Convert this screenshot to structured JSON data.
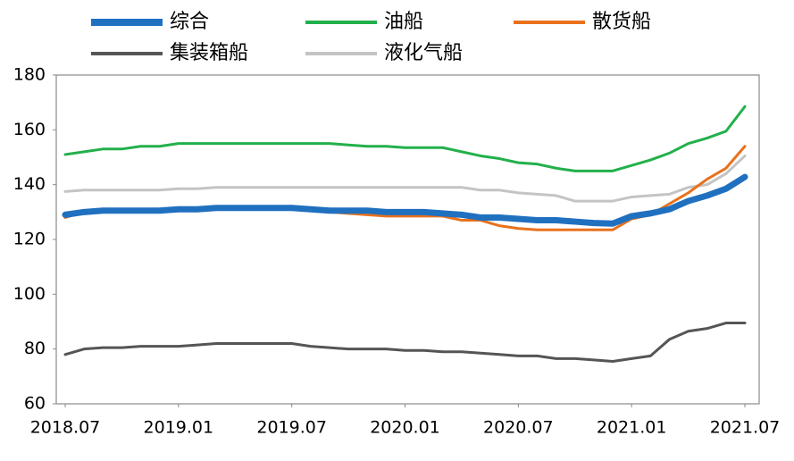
{
  "chart_data": {
    "type": "line",
    "categories": [
      "2018.07",
      null,
      null,
      null,
      null,
      null,
      "2019.01",
      null,
      null,
      null,
      null,
      null,
      "2019.07",
      null,
      null,
      null,
      null,
      null,
      "2020.01",
      null,
      null,
      null,
      null,
      null,
      "2020.07",
      null,
      null,
      null,
      null,
      null,
      "2021.01",
      null,
      null,
      null,
      null,
      null,
      "2021.07"
    ],
    "series": [
      {
        "name": "综合",
        "color": "#2070c0",
        "width": 7,
        "values": [
          129,
          130,
          130.5,
          130.5,
          130.5,
          130.5,
          131,
          131,
          131.5,
          131.5,
          131.5,
          131.5,
          131.5,
          131,
          130.5,
          130.5,
          130.5,
          130,
          130,
          130,
          129.5,
          129,
          128,
          128,
          127.5,
          127,
          127,
          126.5,
          126,
          125.8,
          128.5,
          129.5,
          131,
          134,
          136,
          138.5,
          142.8
        ]
      },
      {
        "name": "油船",
        "color": "#22b04b",
        "width": 3,
        "values": [
          151,
          152,
          153,
          153,
          154,
          154,
          155,
          155,
          155,
          155,
          155,
          155,
          155,
          155,
          155,
          154.5,
          154,
          154,
          153.5,
          153.5,
          153.5,
          152,
          150.5,
          149.5,
          148,
          147.5,
          146,
          145,
          145,
          145,
          147,
          149,
          151.5,
          155,
          157,
          159.5,
          168.5
        ]
      },
      {
        "name": "散货船",
        "color": "#e9711c",
        "width": 3,
        "values": [
          128,
          130,
          130.5,
          131,
          131,
          131,
          131.5,
          131.5,
          131.5,
          131.5,
          131.5,
          131.5,
          131,
          131,
          130,
          129.5,
          129,
          128.5,
          128.5,
          128.5,
          128.5,
          127,
          127,
          125,
          124,
          123.5,
          123.5,
          123.5,
          123.5,
          123.5,
          127.5,
          129,
          133,
          137,
          142,
          146,
          154
        ]
      },
      {
        "name": "集装箱船",
        "color": "#555555",
        "width": 3,
        "values": [
          78,
          80,
          80.5,
          80.5,
          81,
          81,
          81,
          81.5,
          82,
          82,
          82,
          82,
          82,
          81,
          80.5,
          80,
          80,
          80,
          79.5,
          79.5,
          79,
          79,
          78.5,
          78,
          77.5,
          77.5,
          76.5,
          76.5,
          76,
          75.5,
          76.5,
          77.5,
          83.5,
          86.5,
          87.5,
          89.5,
          89.5
        ]
      },
      {
        "name": "液化气船",
        "color": "#c4c4c4",
        "width": 3,
        "values": [
          137.5,
          138,
          138,
          138,
          138,
          138,
          138.5,
          138.5,
          139,
          139,
          139,
          139,
          139,
          139,
          139,
          139,
          139,
          139,
          139,
          139,
          139,
          139,
          138,
          138,
          137,
          136.5,
          136,
          134,
          134,
          134,
          135.5,
          136,
          136.5,
          139,
          140,
          144,
          150.5
        ]
      }
    ],
    "ylim": [
      60,
      180
    ],
    "yticks": [
      60,
      80,
      100,
      120,
      140,
      160,
      180
    ]
  }
}
